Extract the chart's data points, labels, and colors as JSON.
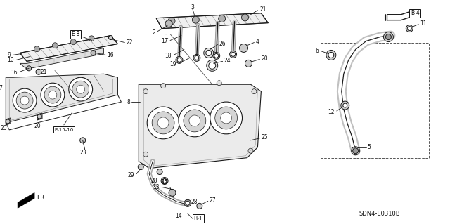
{
  "bg_color": "#ffffff",
  "diagram_code": "SDN4-E0310B",
  "line_color": "#1a1a1a",
  "label_color": "#111111",
  "labels": {
    "E8": "E-8",
    "E1510": "E-15-10",
    "B4": "B-4",
    "B1": "B-1",
    "FR": "FR."
  }
}
